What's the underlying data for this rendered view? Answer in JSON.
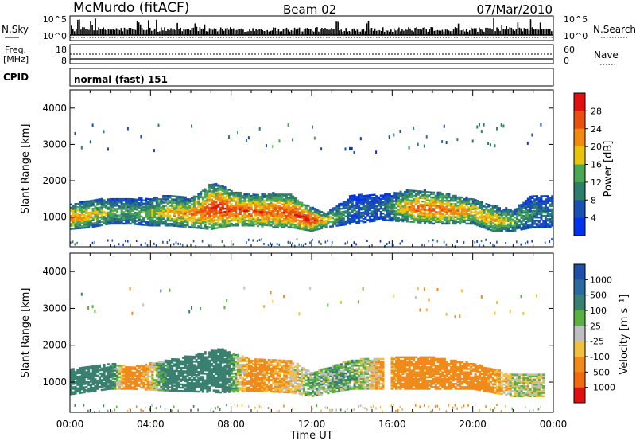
{
  "header": {
    "station": "McMurdo (fitACF)",
    "beam": "Beam 02",
    "date": "07/Mar/2010"
  },
  "noise_panel": {
    "left_label": "N.Sky",
    "right_label": "N.Search",
    "tick_top": "10^5",
    "tick_bottom": "10^0"
  },
  "freq_panel": {
    "left_label_1": "Freq.",
    "left_label_2": "[MHz]",
    "left_tick_top": "18",
    "left_tick_bottom": "8",
    "right_label": "Nave",
    "right_tick_top": "60",
    "right_tick_bottom": "0"
  },
  "cpid": {
    "label": "CPID",
    "value": "normal (fast) 151"
  },
  "axes": {
    "ylabel": "Slant Range [km]",
    "xlabel": "Time UT",
    "y_ticks": [
      "1000",
      "2000",
      "3000",
      "4000"
    ],
    "x_ticks": [
      "00:00",
      "04:00",
      "08:00",
      "12:00",
      "16:00",
      "20:00",
      "00:00"
    ]
  },
  "power_scale": {
    "label": "Power [dB]",
    "ticks": [
      "4",
      "8",
      "12",
      "16",
      "20",
      "24",
      "28"
    ],
    "colors": [
      "#0033ee",
      "#1a50b0",
      "#2f7d6d",
      "#4aa855",
      "#e8c410",
      "#f08a10",
      "#e85010",
      "#e01010"
    ]
  },
  "velocity_scale": {
    "label": "Velocity [m s⁻¹]",
    "ticks": [
      "1000",
      "500",
      "100",
      "25",
      "-25",
      "-100",
      "-500",
      "-1000"
    ],
    "colors": [
      "#1f4fa8",
      "#2a6a9c",
      "#3a8070",
      "#5ab040",
      "#bfbfbf",
      "#f0c040",
      "#f08a1a",
      "#f06a10",
      "#e01010"
    ]
  },
  "chart_data": [
    {
      "type": "heatmap",
      "title": "Power",
      "xlabel": "Time UT",
      "ylabel": "Slant Range [km]",
      "xlim": [
        0,
        24
      ],
      "ylim": [
        180,
        4500
      ],
      "colorbar_label": "Power [dB]",
      "colorbar_range": [
        0,
        32
      ],
      "echo_band": [
        {
          "t": 0.0,
          "r_lo": 650,
          "r_hi": 1350,
          "peak": 24
        },
        {
          "t": 1.0,
          "r_lo": 700,
          "r_hi": 1450,
          "peak": 20
        },
        {
          "t": 2.0,
          "r_lo": 800,
          "r_hi": 1500,
          "peak": 16
        },
        {
          "t": 3.0,
          "r_lo": 800,
          "r_hi": 1500,
          "peak": 14
        },
        {
          "t": 4.0,
          "r_lo": 750,
          "r_hi": 1500,
          "peak": 16
        },
        {
          "t": 5.0,
          "r_lo": 750,
          "r_hi": 1600,
          "peak": 20
        },
        {
          "t": 6.0,
          "r_lo": 700,
          "r_hi": 1500,
          "peak": 24
        },
        {
          "t": 7.0,
          "r_lo": 650,
          "r_hi": 1900,
          "peak": 28
        },
        {
          "t": 7.5,
          "r_lo": 700,
          "r_hi": 1900,
          "peak": 30
        },
        {
          "t": 8.0,
          "r_lo": 750,
          "r_hi": 1700,
          "peak": 28
        },
        {
          "t": 9.0,
          "r_lo": 750,
          "r_hi": 1600,
          "peak": 26
        },
        {
          "t": 10.0,
          "r_lo": 700,
          "r_hi": 1650,
          "peak": 26
        },
        {
          "t": 11.0,
          "r_lo": 700,
          "r_hi": 1600,
          "peak": 28
        },
        {
          "t": 12.0,
          "r_lo": 600,
          "r_hi": 1250,
          "peak": 30
        },
        {
          "t": 12.7,
          "r_lo": 700,
          "r_hi": 1100,
          "peak": 20
        },
        {
          "t": 14.0,
          "r_lo": 800,
          "r_hi": 1600,
          "peak": 8
        },
        {
          "t": 15.5,
          "r_lo": 900,
          "r_hi": 1600,
          "peak": 8
        },
        {
          "t": 17.0,
          "r_lo": 850,
          "r_hi": 1750,
          "peak": 24
        },
        {
          "t": 18.0,
          "r_lo": 800,
          "r_hi": 1700,
          "peak": 26
        },
        {
          "t": 19.0,
          "r_lo": 800,
          "r_hi": 1600,
          "peak": 24
        },
        {
          "t": 20.0,
          "r_lo": 800,
          "r_hi": 1500,
          "peak": 20
        },
        {
          "t": 21.0,
          "r_lo": 600,
          "r_hi": 1300,
          "peak": 22
        },
        {
          "t": 22.0,
          "r_lo": 600,
          "r_hi": 1200,
          "peak": 16
        },
        {
          "t": 23.0,
          "r_lo": 700,
          "r_hi": 1600,
          "peak": 10
        }
      ]
    },
    {
      "type": "heatmap",
      "title": "Velocity",
      "xlabel": "Time UT",
      "ylabel": "Slant Range [km]",
      "xlim": [
        0,
        24
      ],
      "ylim": [
        180,
        4500
      ],
      "colorbar_label": "Velocity [m s⁻¹]",
      "colorbar_ticks": [
        1000,
        500,
        100,
        25,
        -25,
        -100,
        -500,
        -1000
      ],
      "echo_band": [
        {
          "t": 0.0,
          "r_lo": 650,
          "r_hi": 1350,
          "v": 300
        },
        {
          "t": 2.0,
          "r_lo": 800,
          "r_hi": 1500,
          "v": 200
        },
        {
          "t": 3.0,
          "r_lo": 800,
          "r_hi": 1400,
          "v": -300
        },
        {
          "t": 5.0,
          "r_lo": 750,
          "r_hi": 1600,
          "v": 200
        },
        {
          "t": 7.5,
          "r_lo": 700,
          "r_hi": 1900,
          "v": 300
        },
        {
          "t": 9.0,
          "r_lo": 750,
          "r_hi": 1600,
          "v": -200
        },
        {
          "t": 11.0,
          "r_lo": 700,
          "r_hi": 1600,
          "v": -60
        },
        {
          "t": 12.0,
          "r_lo": 600,
          "r_hi": 1250,
          "v": 60
        },
        {
          "t": 14.0,
          "r_lo": 800,
          "r_hi": 1600,
          "v": 60
        },
        {
          "t": 17.5,
          "r_lo": 800,
          "r_hi": 1700,
          "v": -300
        },
        {
          "t": 20.0,
          "r_lo": 800,
          "r_hi": 1500,
          "v": -300
        },
        {
          "t": 22.0,
          "r_lo": 600,
          "r_hi": 1200,
          "v": 0
        }
      ]
    }
  ]
}
